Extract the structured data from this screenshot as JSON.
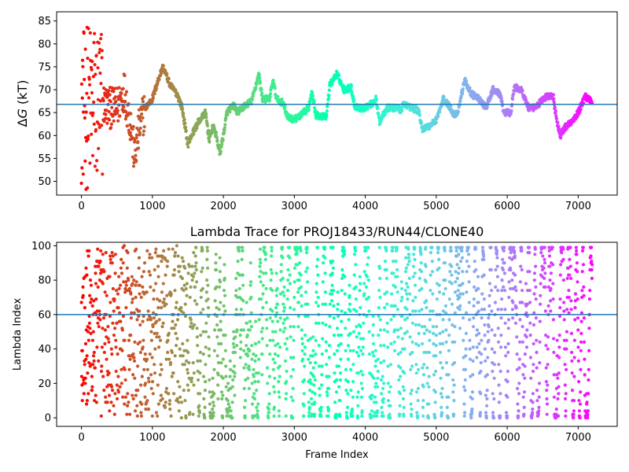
{
  "chart_data": [
    {
      "type": "scatter",
      "title": "",
      "ylabel_prefix": "Δ",
      "ylabel_var": "G",
      "ylabel_unit": " (kT)",
      "xlabel": "",
      "xlim": [
        -350,
        7550
      ],
      "ylim": [
        47,
        87
      ],
      "xticks": [
        0,
        1000,
        2000,
        3000,
        4000,
        5000,
        6000,
        7000
      ],
      "yticks": [
        50,
        55,
        60,
        65,
        70,
        75,
        80,
        85
      ],
      "hline": 66.8,
      "hline_color": "#1f77b4",
      "colormap": "rainbow (reversed: red at frame 0, violet at last frame)",
      "n_frames": 7200,
      "trace_knots": [
        [
          0,
          62
        ],
        [
          50,
          65
        ],
        [
          120,
          70
        ],
        [
          200,
          68
        ],
        [
          300,
          67
        ],
        [
          400,
          66
        ],
        [
          500,
          66
        ],
        [
          600,
          70
        ],
        [
          700,
          62
        ],
        [
          750,
          55
        ],
        [
          820,
          62
        ],
        [
          900,
          66
        ],
        [
          1000,
          68
        ],
        [
          1100,
          73
        ],
        [
          1150,
          75
        ],
        [
          1250,
          71
        ],
        [
          1350,
          69
        ],
        [
          1420,
          66
        ],
        [
          1500,
          58
        ],
        [
          1550,
          60
        ],
        [
          1650,
          63
        ],
        [
          1750,
          65
        ],
        [
          1800,
          59
        ],
        [
          1850,
          62
        ],
        [
          1900,
          60
        ],
        [
          1950,
          56
        ],
        [
          2000,
          60
        ],
        [
          2050,
          65
        ],
        [
          2100,
          66
        ],
        [
          2150,
          66.5
        ],
        [
          2200,
          65
        ],
        [
          2300,
          66.5
        ],
        [
          2400,
          67.5
        ],
        [
          2500,
          73.5
        ],
        [
          2550,
          68
        ],
        [
          2650,
          68
        ],
        [
          2700,
          72
        ],
        [
          2750,
          68
        ],
        [
          2850,
          67
        ],
        [
          2900,
          64
        ],
        [
          3000,
          63.5
        ],
        [
          3100,
          64.5
        ],
        [
          3200,
          66
        ],
        [
          3250,
          70
        ],
        [
          3300,
          64.5
        ],
        [
          3450,
          64
        ],
        [
          3500,
          71
        ],
        [
          3600,
          73.5
        ],
        [
          3700,
          70
        ],
        [
          3800,
          70.5
        ],
        [
          3850,
          66.5
        ],
        [
          3950,
          65.8
        ],
        [
          4100,
          67
        ],
        [
          4150,
          68
        ],
        [
          4200,
          63
        ],
        [
          4300,
          66
        ],
        [
          4450,
          66
        ],
        [
          4500,
          65.5
        ],
        [
          4550,
          67
        ],
        [
          4650,
          66
        ],
        [
          4750,
          65.5
        ],
        [
          4800,
          61.5
        ],
        [
          4900,
          62
        ],
        [
          5000,
          63.5
        ],
        [
          5050,
          65.5
        ],
        [
          5100,
          68
        ],
        [
          5200,
          66
        ],
        [
          5250,
          64.5
        ],
        [
          5300,
          65
        ],
        [
          5400,
          72
        ],
        [
          5500,
          69
        ],
        [
          5600,
          68
        ],
        [
          5700,
          66
        ],
        [
          5800,
          70
        ],
        [
          5900,
          69
        ],
        [
          5950,
          65
        ],
        [
          6050,
          65
        ],
        [
          6100,
          70.5
        ],
        [
          6200,
          70
        ],
        [
          6300,
          66
        ],
        [
          6400,
          66
        ],
        [
          6450,
          67
        ],
        [
          6550,
          68.5
        ],
        [
          6650,
          68.5
        ],
        [
          6700,
          63
        ],
        [
          6750,
          60
        ],
        [
          6800,
          61.5
        ],
        [
          6900,
          63
        ],
        [
          7000,
          65
        ],
        [
          7100,
          68.5
        ],
        [
          7200,
          67.5
        ]
      ]
    },
    {
      "type": "scatter",
      "title": "Lambda Trace for PROJ18433/RUN44/CLONE40",
      "xlabel": "Frame Index",
      "ylabel": "Lambda Index",
      "xlim": [
        -350,
        7550
      ],
      "ylim": [
        -5,
        102
      ],
      "xticks": [
        0,
        1000,
        2000,
        3000,
        4000,
        5000,
        6000,
        7000
      ],
      "yticks": [
        0,
        20,
        40,
        60,
        80,
        100
      ],
      "hline": 60,
      "hline_color": "#1f77b4",
      "n_frames": 7200
    }
  ]
}
